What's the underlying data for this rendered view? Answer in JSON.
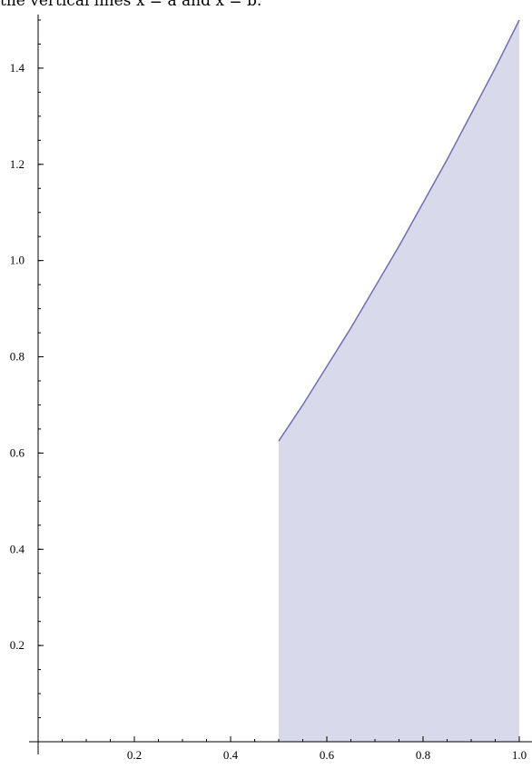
{
  "caption": "the vertical lines x = a and x = b.",
  "chart_data": {
    "type": "area",
    "title": "",
    "xlabel": "",
    "ylabel": "",
    "xlim": [
      0,
      1.0
    ],
    "ylim": [
      0,
      1.5
    ],
    "x_ticks": [
      {
        "value": 0.2,
        "label": "0.2"
      },
      {
        "value": 0.4,
        "label": "0.4"
      },
      {
        "value": 0.6,
        "label": "0.6"
      },
      {
        "value": 0.8,
        "label": "0.8"
      },
      {
        "value": 1.0,
        "label": "1.0"
      }
    ],
    "y_ticks": [
      {
        "value": 0.2,
        "label": "0.2"
      },
      {
        "value": 0.4,
        "label": "0.4"
      },
      {
        "value": 0.6,
        "label": "0.6"
      },
      {
        "value": 0.8,
        "label": "0.8"
      },
      {
        "value": 1.0,
        "label": "1.0"
      },
      {
        "value": 1.2,
        "label": "1.2"
      },
      {
        "value": 1.4,
        "label": "1.4"
      }
    ],
    "x_minor_step": 0.05,
    "y_minor_step": 0.05,
    "series": [
      {
        "x": [
          0.5,
          0.55,
          0.6,
          0.65,
          0.7,
          0.75,
          0.8,
          0.85,
          0.9,
          0.95,
          1.0
        ],
        "values": [
          0.625,
          0.7,
          0.78,
          0.86,
          0.945,
          1.03,
          1.12,
          1.21,
          1.305,
          1.4,
          1.5
        ]
      }
    ],
    "fill_to": 0,
    "colors": {
      "line": "#6f6fb0",
      "fill": "#d9d9ec",
      "axis": "#000000"
    },
    "grid": false
  }
}
